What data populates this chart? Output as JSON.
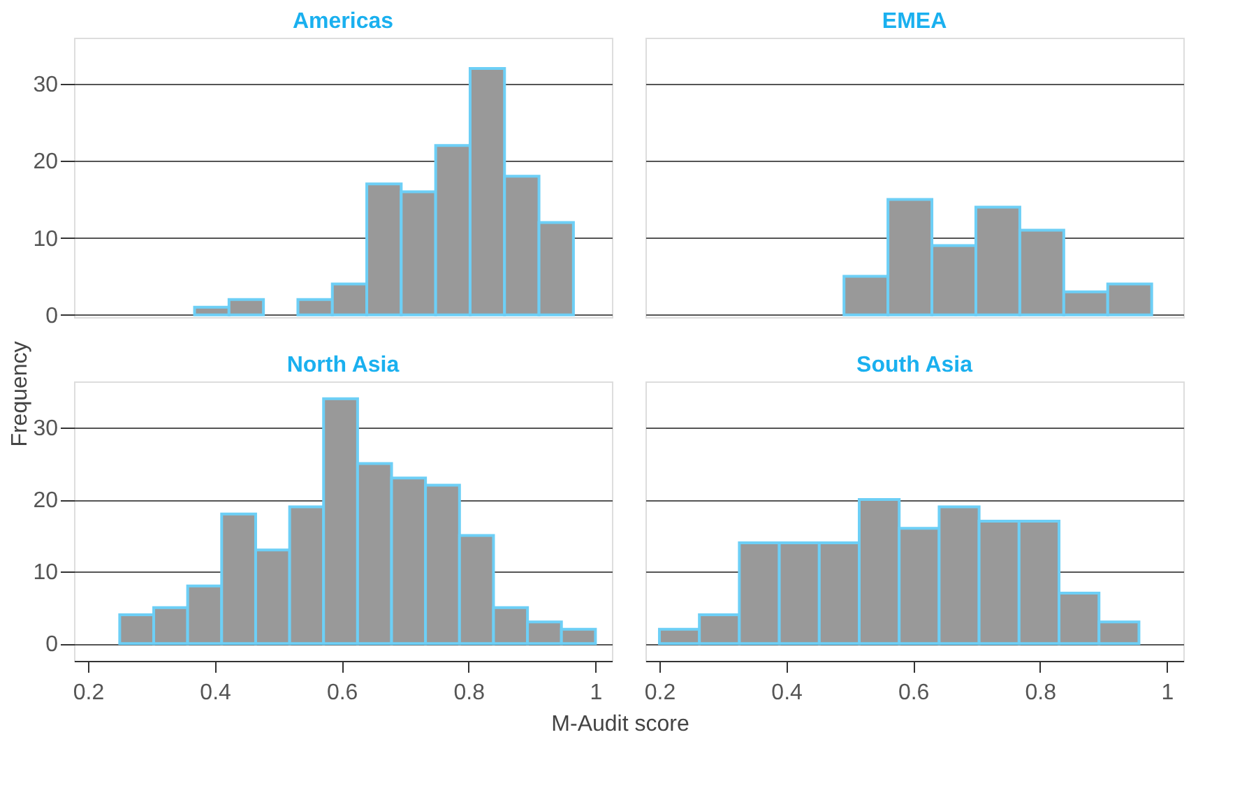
{
  "chart_data": [
    {
      "type": "histogram",
      "title": "Americas",
      "ylabel": "Frequency",
      "bins": [
        0.368,
        0.4223,
        0.4766,
        0.5309,
        0.5852,
        0.6395,
        0.6938,
        0.7481,
        0.8024,
        0.8567,
        0.911,
        0.9653
      ],
      "values": [
        1,
        2,
        0,
        2,
        4,
        17,
        16,
        22,
        32,
        18,
        12
      ],
      "color": "#999999",
      "xlim": [
        0.178,
        1.026
      ],
      "ylim": [
        -0.3,
        36
      ],
      "yticks": [
        0,
        10,
        20,
        30
      ],
      "grid": "y",
      "tick_labels": "y"
    },
    {
      "type": "histogram",
      "title": "EMEA",
      "bins": [
        0.491,
        0.5603,
        0.6296,
        0.6989,
        0.7682,
        0.8375,
        0.9068,
        0.9761
      ],
      "values": [
        5,
        15,
        9,
        14,
        11,
        3,
        4
      ],
      "color": "#999999",
      "xlim": [
        0.178,
        1.026
      ],
      "ylim": [
        -0.3,
        36
      ],
      "grid": "y",
      "tick_labels": false
    },
    {
      "type": "histogram",
      "title": "North Asia",
      "xlabel": "M-Audit score",
      "bins": [
        0.25,
        0.3036,
        0.3571,
        0.4107,
        0.4643,
        0.5179,
        0.5714,
        0.625,
        0.6786,
        0.7321,
        0.7857,
        0.8393,
        0.8929,
        0.9464,
        1.0
      ],
      "values": [
        4,
        5,
        8,
        18,
        13,
        19,
        34,
        25,
        23,
        22,
        15,
        5,
        3,
        2
      ],
      "color": "#999999",
      "xlim": [
        0.178,
        1.026
      ],
      "xticks": [
        0.2,
        0.4,
        0.6,
        0.8,
        1
      ],
      "ylim": [
        -2.4,
        36.4
      ],
      "yticks": [
        0,
        10,
        20,
        30
      ],
      "grid": "y"
    },
    {
      "type": "histogram",
      "title": "South Asia",
      "bins": [
        0.2,
        0.263,
        0.326,
        0.389,
        0.452,
        0.515,
        0.578,
        0.641,
        0.704,
        0.767,
        0.83,
        0.893,
        0.956
      ],
      "values": [
        2,
        4,
        14,
        14,
        14,
        20,
        16,
        19,
        17,
        17,
        7,
        3
      ],
      "color": "#999999",
      "xlim": [
        0.178,
        1.026
      ],
      "xticks": [
        0.2,
        0.4,
        0.6,
        0.8,
        1
      ],
      "ylim": [
        -2.4,
        36.4
      ],
      "grid": "y",
      "tick_labels": "x"
    }
  ]
}
